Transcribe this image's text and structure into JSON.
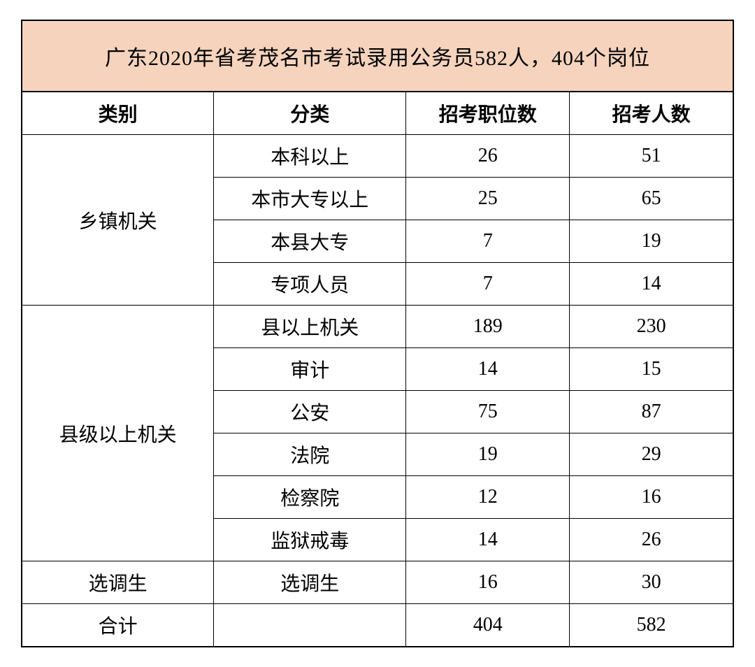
{
  "title": "广东2020年省考茂名市考试录用公务员582人，404个岗位",
  "columns": [
    "类别",
    "分类",
    "招考职位数",
    "招考人数"
  ],
  "groups": [
    {
      "category": "乡镇机关",
      "rows": [
        {
          "sub": "本科以上",
          "positions": "26",
          "people": "51"
        },
        {
          "sub": "本市大专以上",
          "positions": "25",
          "people": "65"
        },
        {
          "sub": "本县大专",
          "positions": "7",
          "people": "19"
        },
        {
          "sub": "专项人员",
          "positions": "7",
          "people": "14"
        }
      ]
    },
    {
      "category": "县级以上机关",
      "rows": [
        {
          "sub": "县以上机关",
          "positions": "189",
          "people": "230"
        },
        {
          "sub": "审计",
          "positions": "14",
          "people": "15"
        },
        {
          "sub": "公安",
          "positions": "75",
          "people": "87"
        },
        {
          "sub": "法院",
          "positions": "19",
          "people": "29"
        },
        {
          "sub": "检察院",
          "positions": "12",
          "people": "16"
        },
        {
          "sub": "监狱戒毒",
          "positions": "14",
          "people": "26"
        }
      ]
    },
    {
      "category": "选调生",
      "rows": [
        {
          "sub": "选调生",
          "positions": "16",
          "people": "30"
        }
      ]
    }
  ],
  "total": {
    "label": "合计",
    "sub": "",
    "positions": "404",
    "people": "582"
  },
  "style": {
    "title_bg": "#f5d3bd",
    "border_color": "#000000",
    "header_fontsize": 28,
    "body_fontsize": 28,
    "title_fontsize": 30
  }
}
